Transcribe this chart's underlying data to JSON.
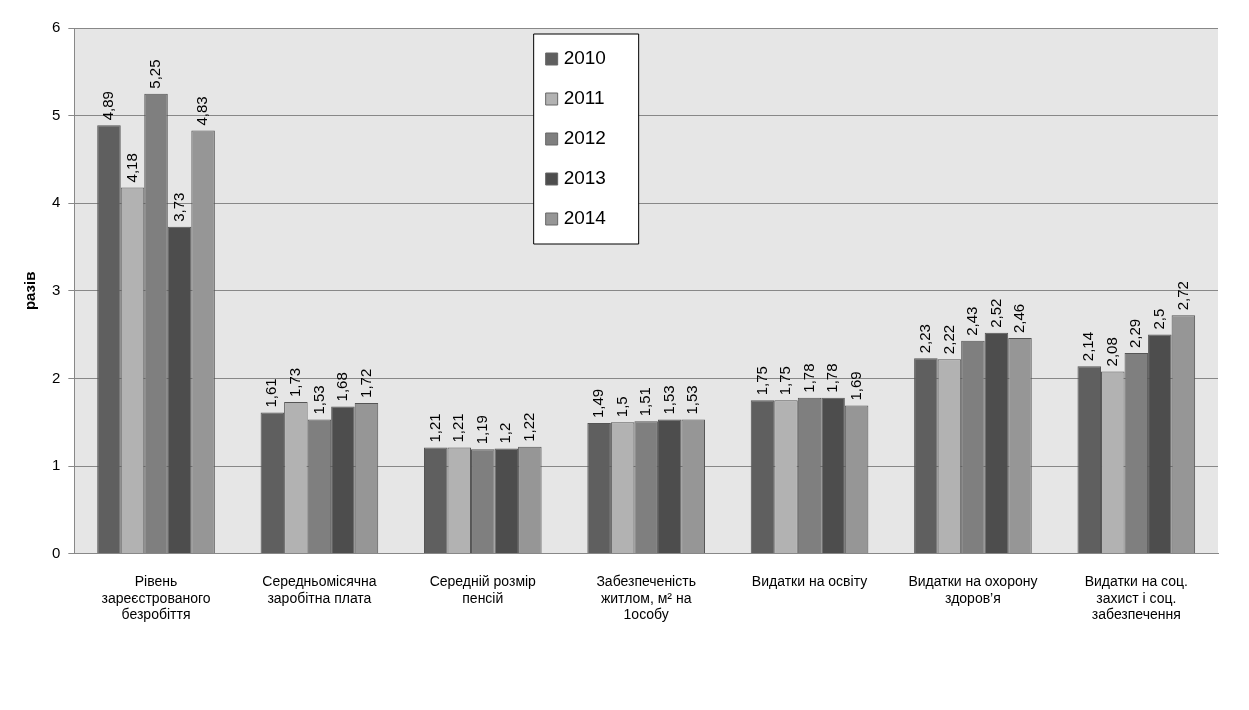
{
  "chart_data": {
    "type": "bar",
    "ylabel": "разів",
    "categories": [
      "Рівень зареєстрованого безробіття",
      "Середньомісячна заробітна плата",
      "Середній розмір пенсій",
      "Забезпеченість житлом, м² на 1особу",
      "Видатки на освіту",
      "Видатки на охорону здоров’я",
      "Видатки на соц. захист і соц. забезпечення"
    ],
    "series": [
      {
        "name": "2010",
        "color": "#5f5f5f",
        "values": [
          4.89,
          1.61,
          1.21,
          1.49,
          1.75,
          2.23,
          2.14
        ],
        "value_labels": [
          "4,89",
          "1,61",
          "1,21",
          "1,49",
          "1,75",
          "2,23",
          "2,14"
        ]
      },
      {
        "name": "2011",
        "color": "#b2b2b2",
        "values": [
          4.18,
          1.73,
          1.21,
          1.5,
          1.75,
          2.22,
          2.08
        ],
        "value_labels": [
          "4,18",
          "1,73",
          "1,21",
          "1,5",
          "1,75",
          "2,22",
          "2,08"
        ]
      },
      {
        "name": "2012",
        "color": "#7f7f7f",
        "values": [
          5.25,
          1.53,
          1.19,
          1.51,
          1.78,
          2.43,
          2.29
        ],
        "value_labels": [
          "5,25",
          "1,53",
          "1,19",
          "1,51",
          "1,78",
          "2,43",
          "2,29"
        ]
      },
      {
        "name": "2013",
        "color": "#4d4d4d",
        "values": [
          3.73,
          1.68,
          1.2,
          1.53,
          1.78,
          2.52,
          2.5
        ],
        "value_labels": [
          "3,73",
          "1,68",
          "1,2",
          "1,53",
          "1,78",
          "2,52",
          "2,5"
        ]
      },
      {
        "name": "2014",
        "color": "#969696",
        "values": [
          4.83,
          1.72,
          1.22,
          1.53,
          1.69,
          2.46,
          2.72
        ],
        "value_labels": [
          "4,83",
          "1,72",
          "1,22",
          "1,53",
          "1,69",
          "2,46",
          "2,72"
        ]
      }
    ],
    "ylim": [
      0,
      6
    ],
    "yticks": [
      0,
      1,
      2,
      3,
      4,
      5,
      6
    ],
    "grid": "y",
    "legend": "top"
  }
}
